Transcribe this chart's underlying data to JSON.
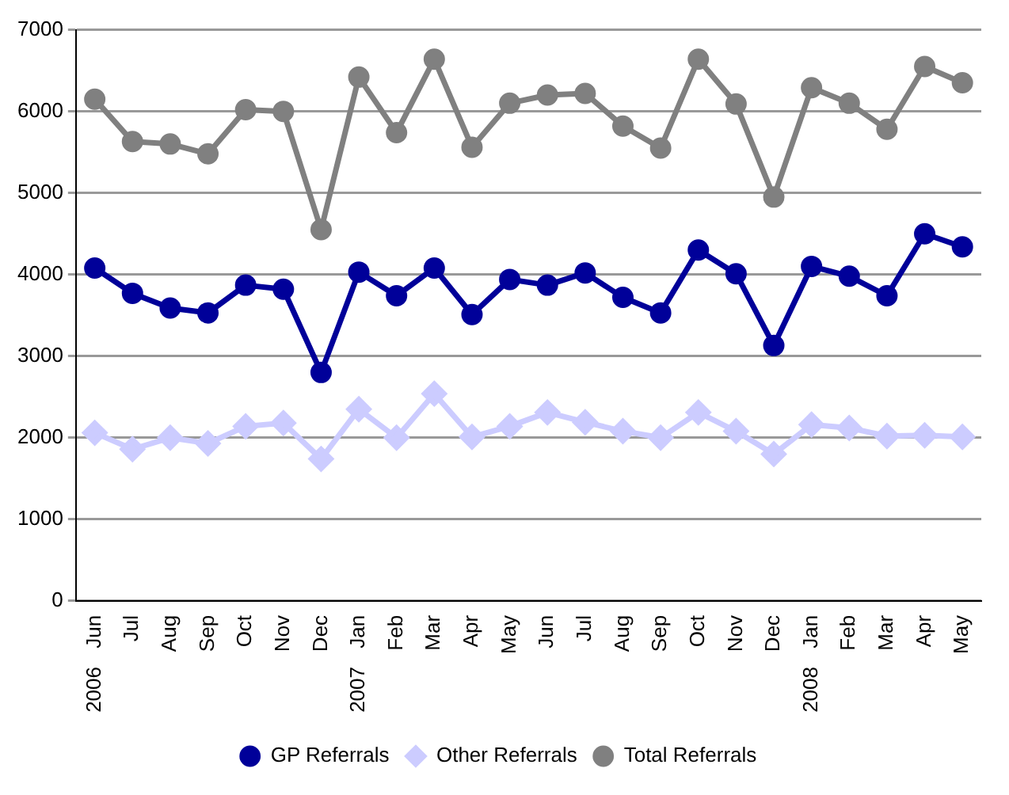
{
  "chart_data": {
    "type": "line",
    "categories": [
      "Jun",
      "Jul",
      "Aug",
      "Sep",
      "Oct",
      "Nov",
      "Dec",
      "Jan",
      "Feb",
      "Mar",
      "Apr",
      "May",
      "Jun",
      "Jul",
      "Aug",
      "Sep",
      "Oct",
      "Nov",
      "Dec",
      "Jan",
      "Feb",
      "Mar",
      "Apr",
      "May"
    ],
    "series": [
      {
        "name": "GP Referrals",
        "color": "#000099",
        "marker": "circle",
        "values": [
          4080,
          3770,
          3590,
          3530,
          3870,
          3820,
          2800,
          4030,
          3740,
          4080,
          3510,
          3940,
          3870,
          4020,
          3720,
          3530,
          4300,
          4010,
          3130,
          4100,
          3980,
          3740,
          4500,
          4340
        ]
      },
      {
        "name": "Other Referrals",
        "color": "#ccccff",
        "marker": "diamond",
        "values": [
          2060,
          1860,
          2000,
          1930,
          2140,
          2180,
          1740,
          2350,
          2000,
          2540,
          2010,
          2140,
          2310,
          2190,
          2080,
          2000,
          2310,
          2080,
          1800,
          2160,
          2120,
          2020,
          2030,
          2010
        ]
      },
      {
        "name": "Total Referrals",
        "color": "#808080",
        "marker": "circle",
        "values": [
          6150,
          5630,
          5600,
          5480,
          6020,
          6000,
          4550,
          6420,
          5740,
          6640,
          5560,
          6100,
          6200,
          6220,
          5820,
          5550,
          6640,
          6090,
          4950,
          6290,
          6100,
          5780,
          6550,
          6350
        ]
      }
    ],
    "ylim": [
      0,
      7000
    ],
    "yticks": [
      0,
      1000,
      2000,
      3000,
      4000,
      5000,
      6000,
      7000
    ],
    "grid": "y",
    "legend": "bottom",
    "annotations": [
      "2006",
      "2007",
      "2008"
    ]
  }
}
